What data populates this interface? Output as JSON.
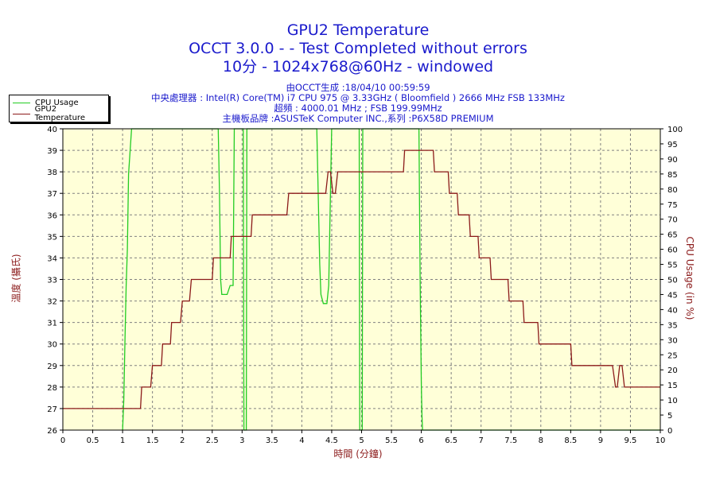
{
  "header": {
    "title": "GPU2 Temperature",
    "subtitle1": "OCCT 3.0.0 -  - Test Completed without errors",
    "subtitle2": "10分 - 1024x768@60Hz - windowed",
    "info1": "由OCCT生成 :18/04/10 00:59:59",
    "info2": "中央處理器 : Intel(R) Core(TM) i7 CPU 975 @ 3.33GHz ( Bloomfield ) 2666 MHz FSB 133MHz",
    "info3": "超頻 : 4000.01 MHz ; FSB 199.99MHz",
    "info4": "主機板品牌 :ASUSTeK Computer INC.,系列 :P6X58D PREMIUM"
  },
  "colors": {
    "cpu": "#22cc22",
    "gpu": "#8b1a1a",
    "plot_bg": "#ffffd8",
    "grid": "#808080"
  },
  "chart_data": {
    "type": "line",
    "xlabel": "時間 (分鐘)",
    "ylabel": "溫度 (攝氏)",
    "y2label": "CPU Usage (in %)",
    "xlim": [
      0,
      10
    ],
    "ylim": [
      26,
      40
    ],
    "y2lim": [
      0,
      100
    ],
    "x_ticks": [
      "0",
      "0.5",
      "1",
      "1.5",
      "2",
      "2.5",
      "3",
      "3.5",
      "4",
      "4.5",
      "5",
      "5.5",
      "6",
      "6.5",
      "7",
      "7.5",
      "8",
      "8.5",
      "9",
      "9.5",
      "10"
    ],
    "y_ticks": [
      "26",
      "27",
      "28",
      "29",
      "30",
      "31",
      "32",
      "33",
      "34",
      "35",
      "36",
      "37",
      "38",
      "39",
      "40"
    ],
    "y2_ticks": [
      "0",
      "5",
      "10",
      "15",
      "20",
      "25",
      "30",
      "35",
      "40",
      "45",
      "50",
      "55",
      "60",
      "65",
      "70",
      "75",
      "80",
      "85",
      "90",
      "95",
      "100"
    ],
    "grid": true,
    "legend_position": "top-left",
    "series": [
      {
        "name": "CPU Usage",
        "axis": "right",
        "points": [
          [
            1.0,
            0
          ],
          [
            1.02,
            10
          ],
          [
            1.04,
            30
          ],
          [
            1.06,
            48
          ],
          [
            1.08,
            60
          ],
          [
            1.1,
            85
          ],
          [
            1.15,
            100
          ],
          [
            2.6,
            100
          ],
          [
            2.62,
            80
          ],
          [
            2.64,
            50
          ],
          [
            2.66,
            45
          ],
          [
            2.7,
            45
          ],
          [
            2.75,
            45
          ],
          [
            2.8,
            48
          ],
          [
            2.85,
            48
          ],
          [
            2.87,
            100
          ],
          [
            3.02,
            100
          ],
          [
            3.03,
            0
          ],
          [
            3.07,
            0
          ],
          [
            3.08,
            100
          ],
          [
            4.25,
            100
          ],
          [
            4.3,
            55
          ],
          [
            4.32,
            45
          ],
          [
            4.36,
            42
          ],
          [
            4.42,
            42
          ],
          [
            4.45,
            48
          ],
          [
            4.5,
            100
          ],
          [
            4.96,
            100
          ],
          [
            4.97,
            0
          ],
          [
            5.01,
            0
          ],
          [
            5.02,
            100
          ],
          [
            5.96,
            100
          ],
          [
            5.98,
            50
          ],
          [
            6.0,
            15
          ],
          [
            6.01,
            5
          ],
          [
            6.02,
            0
          ],
          [
            10,
            0
          ]
        ]
      },
      {
        "name": "GPU2 Temperature",
        "axis": "left",
        "points": [
          [
            0,
            27
          ],
          [
            1.3,
            27
          ],
          [
            1.32,
            28
          ],
          [
            1.47,
            28
          ],
          [
            1.5,
            29
          ],
          [
            1.65,
            29
          ],
          [
            1.67,
            30
          ],
          [
            1.8,
            30
          ],
          [
            1.82,
            31
          ],
          [
            1.97,
            31
          ],
          [
            2.0,
            32
          ],
          [
            2.12,
            32
          ],
          [
            2.15,
            33
          ],
          [
            2.5,
            33
          ],
          [
            2.52,
            34
          ],
          [
            2.8,
            34
          ],
          [
            2.82,
            35
          ],
          [
            3.15,
            35
          ],
          [
            3.17,
            36
          ],
          [
            3.75,
            36
          ],
          [
            3.78,
            37
          ],
          [
            4.4,
            37
          ],
          [
            4.44,
            38
          ],
          [
            4.48,
            38
          ],
          [
            4.52,
            37
          ],
          [
            4.56,
            37
          ],
          [
            4.6,
            38
          ],
          [
            5.7,
            38
          ],
          [
            5.72,
            39
          ],
          [
            6.2,
            39
          ],
          [
            6.22,
            38
          ],
          [
            6.45,
            38
          ],
          [
            6.47,
            37
          ],
          [
            6.6,
            37
          ],
          [
            6.62,
            36
          ],
          [
            6.8,
            36
          ],
          [
            6.82,
            35
          ],
          [
            6.95,
            35
          ],
          [
            6.97,
            34
          ],
          [
            7.15,
            34
          ],
          [
            7.17,
            33
          ],
          [
            7.45,
            33
          ],
          [
            7.47,
            32
          ],
          [
            7.7,
            32
          ],
          [
            7.72,
            31
          ],
          [
            7.95,
            31
          ],
          [
            7.97,
            30
          ],
          [
            8.5,
            30
          ],
          [
            8.52,
            29
          ],
          [
            9.2,
            29
          ],
          [
            9.25,
            28
          ],
          [
            9.28,
            28
          ],
          [
            9.32,
            29
          ],
          [
            9.36,
            29
          ],
          [
            9.4,
            28
          ],
          [
            10,
            28
          ]
        ]
      }
    ]
  }
}
